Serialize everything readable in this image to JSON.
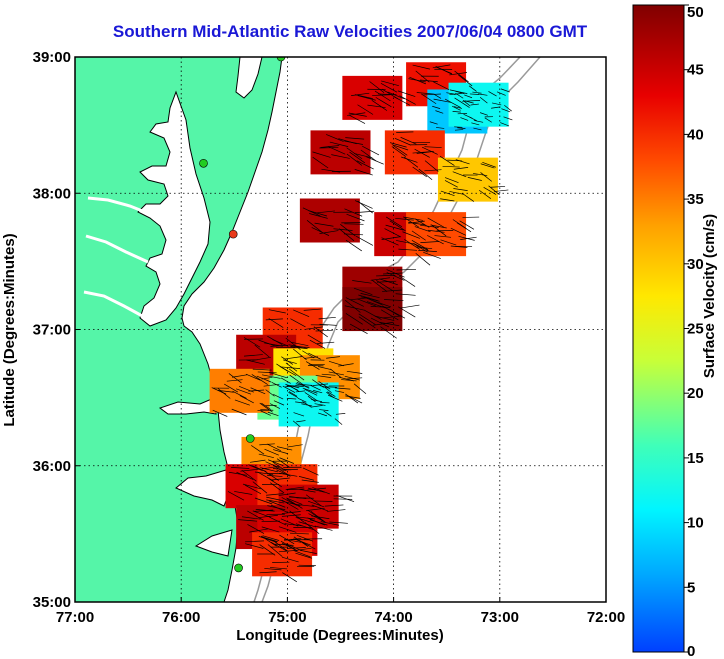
{
  "title": "Southern Mid-Atlantic Raw Velocities 2007/06/04 0800 GMT",
  "x_axis": {
    "label": "Longitude (Degrees:Minutes)",
    "ticks": [
      {
        "value": -77,
        "label": "77:00"
      },
      {
        "value": -76,
        "label": "76:00"
      },
      {
        "value": -75,
        "label": "75:00"
      },
      {
        "value": -74,
        "label": "74:00"
      },
      {
        "value": -73,
        "label": "73:00"
      },
      {
        "value": -72,
        "label": "72:00"
      }
    ],
    "range": [
      -77,
      -72
    ]
  },
  "y_axis": {
    "label": "Latitude (Degrees:Minutes)",
    "ticks": [
      {
        "value": 35,
        "label": "35:00"
      },
      {
        "value": 36,
        "label": "36:00"
      },
      {
        "value": 37,
        "label": "37:00"
      },
      {
        "value": 38,
        "label": "38:00"
      },
      {
        "value": 39,
        "label": "39:00"
      }
    ],
    "range": [
      35,
      39
    ]
  },
  "colorbar": {
    "label": "Surface Velocity (cm/s)",
    "min": 0,
    "max": 50,
    "ticks": [
      {
        "value": 0,
        "label": "0"
      },
      {
        "value": 5,
        "label": "5"
      },
      {
        "value": 10,
        "label": "10"
      },
      {
        "value": 15,
        "label": "15"
      },
      {
        "value": 20,
        "label": "20"
      },
      {
        "value": 25,
        "label": "25"
      },
      {
        "value": 30,
        "label": "30"
      },
      {
        "value": 35,
        "label": "35"
      },
      {
        "value": 40,
        "label": "40"
      },
      {
        "value": 45,
        "label": "45"
      },
      {
        "value": 50,
        "label": "50"
      }
    ]
  },
  "colors": {
    "land": "#55f5a8",
    "frame": "#000000",
    "title": "#1a18d6",
    "station": "#22cc22",
    "station_offline": "#e83a1a"
  },
  "grid": true,
  "stations": [
    {
      "lon": -75.06,
      "lat": 39.0,
      "status": "active"
    },
    {
      "lon": -75.79,
      "lat": 38.22,
      "status": "active"
    },
    {
      "lon": -75.51,
      "lat": 37.7,
      "status": "offline"
    },
    {
      "lon": -75.35,
      "lat": 36.2,
      "status": "active"
    },
    {
      "lon": -75.46,
      "lat": 35.25,
      "status": "active"
    }
  ],
  "velocity_regions": [
    {
      "name": "delmarva-offshore",
      "cells": [
        {
          "lon": -74.2,
          "lat": 38.7,
          "v": 44
        },
        {
          "lon": -73.6,
          "lat": 38.8,
          "v": 42
        },
        {
          "lon": -73.4,
          "lat": 38.6,
          "v": 8
        },
        {
          "lon": -73.2,
          "lat": 38.65,
          "v": 12
        },
        {
          "lon": -74.5,
          "lat": 38.3,
          "v": 46
        },
        {
          "lon": -73.8,
          "lat": 38.3,
          "v": 40
        },
        {
          "lon": -73.3,
          "lat": 38.1,
          "v": 30
        },
        {
          "lon": -74.6,
          "lat": 37.8,
          "v": 47
        },
        {
          "lon": -73.9,
          "lat": 37.7,
          "v": 45
        },
        {
          "lon": -73.6,
          "lat": 37.7,
          "v": 38
        },
        {
          "lon": -74.2,
          "lat": 37.3,
          "v": 48
        },
        {
          "lon": -74.2,
          "lat": 37.15,
          "v": 50
        }
      ]
    },
    {
      "name": "virginia-beach-offshore",
      "cells": [
        {
          "lon": -74.95,
          "lat": 37.0,
          "v": 40
        },
        {
          "lon": -75.2,
          "lat": 36.8,
          "v": 46
        },
        {
          "lon": -74.85,
          "lat": 36.7,
          "v": 28
        },
        {
          "lon": -74.6,
          "lat": 36.65,
          "v": 34
        },
        {
          "lon": -75.0,
          "lat": 36.5,
          "v": 18
        },
        {
          "lon": -74.8,
          "lat": 36.45,
          "v": 12
        },
        {
          "lon": -75.45,
          "lat": 36.55,
          "v": 35
        }
      ]
    },
    {
      "name": "outer-banks-offshore",
      "cells": [
        {
          "lon": -75.15,
          "lat": 36.05,
          "v": 34
        },
        {
          "lon": -75.3,
          "lat": 35.85,
          "v": 44
        },
        {
          "lon": -75.0,
          "lat": 35.85,
          "v": 40
        },
        {
          "lon": -74.8,
          "lat": 35.7,
          "v": 45
        },
        {
          "lon": -75.2,
          "lat": 35.55,
          "v": 46
        },
        {
          "lon": -75.0,
          "lat": 35.5,
          "v": 44
        },
        {
          "lon": -75.05,
          "lat": 35.35,
          "v": 40
        }
      ]
    }
  ]
}
